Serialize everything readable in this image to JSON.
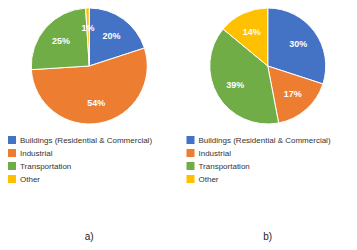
{
  "chart_data": [
    {
      "type": "pie",
      "title": "a)",
      "categories": [
        "Buildings (Residential & Commercial)",
        "Industrial",
        "Transportation",
        "Other"
      ],
      "values": [
        20,
        54,
        25,
        1
      ],
      "value_labels": [
        "20%",
        "54%",
        "25%",
        "1%"
      ],
      "colors": [
        "#4472C4",
        "#ED7D31",
        "#70AD47",
        "#FFC000"
      ],
      "data_labels": true,
      "legend": "bottom"
    },
    {
      "type": "pie",
      "title": "b)",
      "categories": [
        "Buildings (Residential & Commercial)",
        "Industrial",
        "Transportation",
        "Other"
      ],
      "values": [
        30,
        17,
        39,
        14
      ],
      "value_labels": [
        "30%",
        "17%",
        "39%",
        "14%"
      ],
      "colors": [
        "#4472C4",
        "#ED7D31",
        "#70AD47",
        "#FFC000"
      ],
      "data_labels": true,
      "legend": "bottom"
    }
  ]
}
